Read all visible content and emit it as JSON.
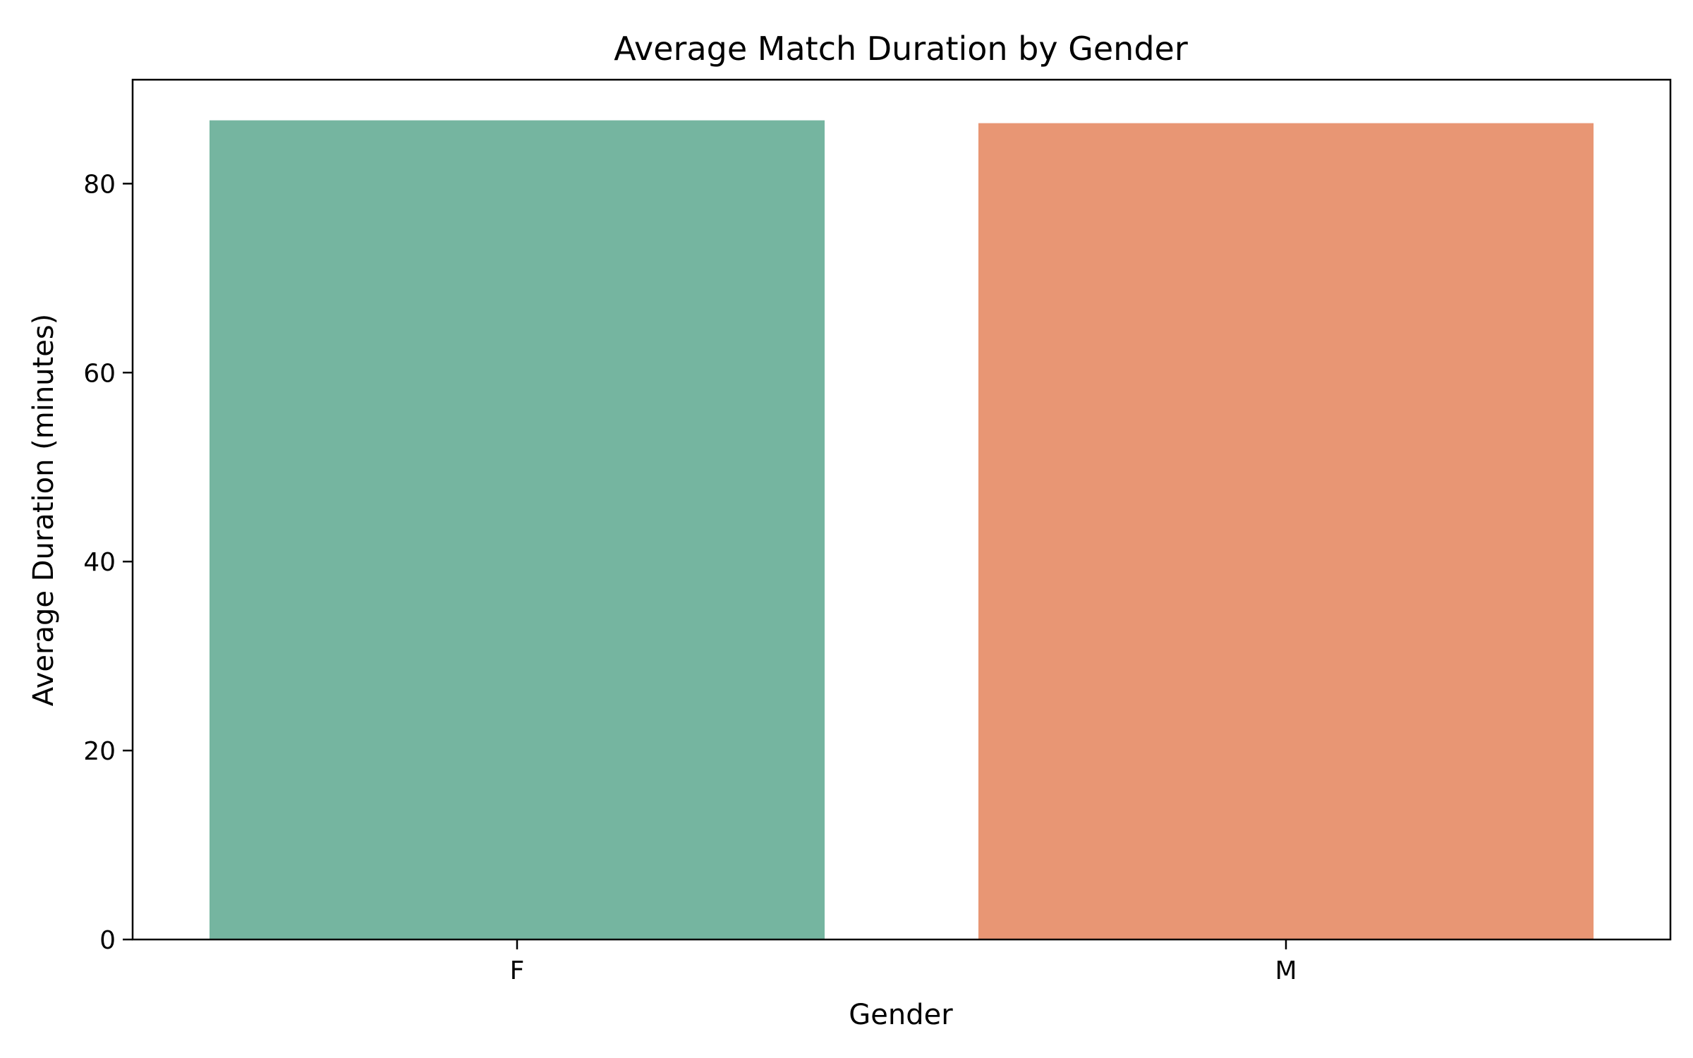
{
  "chart_data": {
    "type": "bar",
    "title": "Average Match Duration by Gender",
    "xlabel": "Gender",
    "ylabel": "Average Duration (minutes)",
    "categories": [
      "F",
      "M"
    ],
    "values": [
      86.7,
      86.4
    ],
    "colors": [
      "#75b5a0",
      "#e89674"
    ],
    "ylim": [
      0,
      91
    ],
    "yticks": [
      0,
      20,
      40,
      60,
      80
    ],
    "grid": false
  }
}
